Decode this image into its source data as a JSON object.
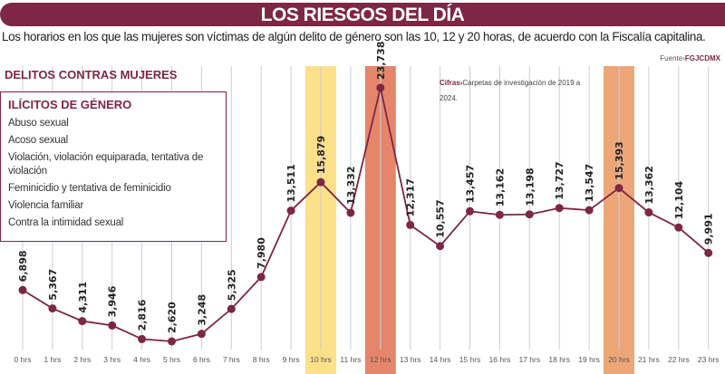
{
  "header": {
    "title": "LOS RIESGOS DEL DÍA",
    "subtitle": "Los horarios en los que las mujeres son víctimas de algún delito de género son las 10, 12 y 20 horas, de acuerdo con la Fiscalía capitalina.",
    "source_label": "Fuente›",
    "source": "FGJCDMX"
  },
  "section": "DELITOS CONTRAS MUJERES",
  "legend": {
    "title": "ILÍCITOS DE GÉNERO",
    "items": [
      "Abuso sexual",
      "Acoso sexual",
      "Violación, violación equiparada, tentativa de violación",
      "Feminicidio y tentativa de feminicidio",
      "Violencia familiar",
      "Contra la intimidad sexual"
    ]
  },
  "note": {
    "label": "Cifras›",
    "text": "Carpetas de investigación de 2019 a 2024."
  },
  "colors": {
    "brand": "#7d2645",
    "highlight_10": "#fde08a",
    "highlight_12": "#e5866a",
    "highlight_20": "#eda678",
    "grid": "#c9cdd6"
  },
  "chart_data": {
    "type": "line",
    "categories": [
      "0 hrs",
      "1 hrs",
      "2 hrs",
      "3 hrs",
      "4 hrs",
      "5 hrs",
      "6 hrs",
      "7 hrs",
      "8 hrs",
      "9 hrs",
      "10 hrs",
      "11 hrs",
      "12 hrs",
      "13 hrs",
      "14 hrs",
      "15 hrs",
      "16 hrs",
      "17 hrs",
      "18 hrs",
      "19 hrs",
      "20 hrs",
      "21 hrs",
      "22 hrs",
      "23 hrs"
    ],
    "values": [
      6898,
      5367,
      4311,
      3946,
      2816,
      2620,
      3248,
      5325,
      7980,
      13511,
      15879,
      13332,
      23738,
      12317,
      10557,
      13457,
      13162,
      13198,
      13727,
      13547,
      15393,
      13362,
      12104,
      9991
    ],
    "data_labels": [
      "6,898",
      "5,367",
      "4,311",
      "3,946",
      "2,816",
      "2,620",
      "3,248",
      "5,325",
      "7,980",
      "13,511",
      "15,879",
      "13,332",
      "23,738",
      "12,317",
      "10,557",
      "13,457",
      "13,162",
      "13,198",
      "13,727",
      "13,547",
      "15,393",
      "13,362",
      "12,104",
      "9,991"
    ],
    "highlighted": [
      {
        "index": 10,
        "color": "#fde08a"
      },
      {
        "index": 12,
        "color": "#e5866a"
      },
      {
        "index": 20,
        "color": "#eda678"
      }
    ],
    "grid": true
  }
}
